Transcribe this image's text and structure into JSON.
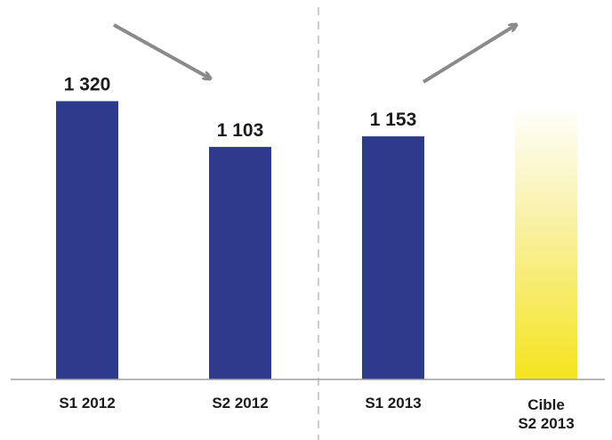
{
  "chart_data": {
    "type": "bar",
    "categories": [
      [
        "S1 2012"
      ],
      [
        "S2 2012"
      ],
      [
        "S1 2013"
      ],
      [
        "Cible",
        "S2 2013"
      ]
    ],
    "values": [
      1320,
      1103,
      1153,
      null
    ],
    "value_labels": [
      "1 320",
      "1 103",
      "1 153",
      ""
    ],
    "title": "",
    "xlabel": "",
    "ylabel": "",
    "ylim": [
      0,
      1400
    ],
    "grid": false,
    "legend": "none",
    "bar_colors": [
      "#2e3a8c",
      "#2e3a8c",
      "#2e3a8c",
      "#f5e41e"
    ],
    "target_fade_color": "#ffffff",
    "divider_color": "#cccccc",
    "arrow_color": "#8a8a8a",
    "trend_arrows": [
      "down",
      "up"
    ]
  }
}
